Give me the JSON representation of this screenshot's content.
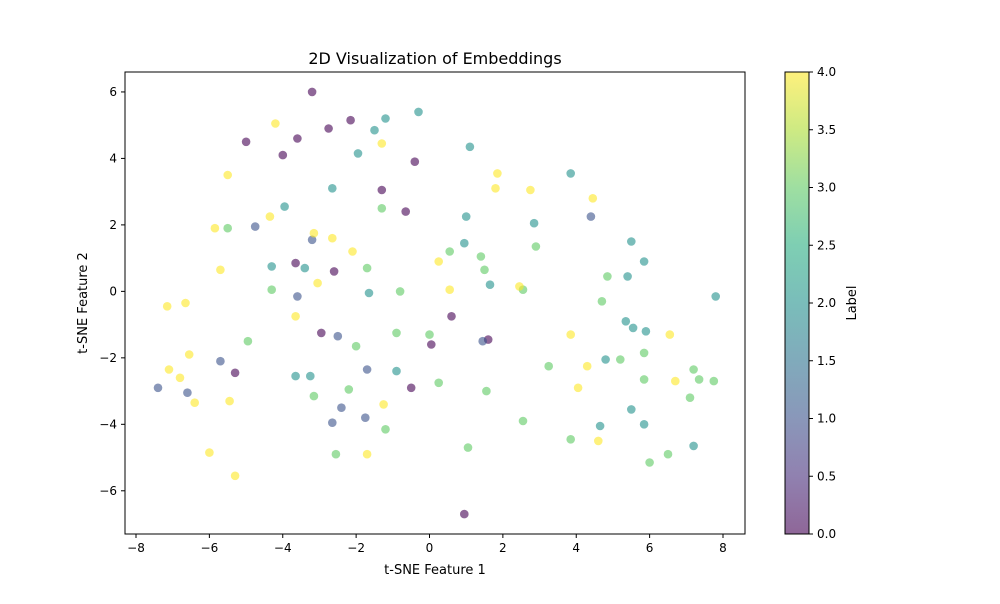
{
  "chart_data": {
    "type": "scatter",
    "title": "2D Visualization of Embeddings",
    "xlabel": "t-SNE Feature 1",
    "ylabel": "t-SNE Feature 2",
    "xlim": [
      -8.3,
      8.6
    ],
    "ylim": [
      -7.3,
      6.6
    ],
    "xticks": [
      -8,
      -6,
      -4,
      -2,
      0,
      2,
      4,
      6,
      8
    ],
    "yticks": [
      -6,
      -4,
      -2,
      0,
      2,
      4,
      6
    ],
    "xtick_labels": [
      "−8",
      "−6",
      "−4",
      "−2",
      "0",
      "2",
      "4",
      "6",
      "8"
    ],
    "ytick_labels": [
      "−6",
      "−4",
      "−2",
      "0",
      "2",
      "4",
      "6"
    ],
    "grid": false,
    "marker_alpha": 0.6,
    "colormap": "viridis",
    "colors": {
      "0": "#440154",
      "1": "#3b528b",
      "2": "#21918c",
      "3": "#5ec962",
      "4": "#fde725"
    },
    "colorbar": {
      "label": "Label",
      "range": [
        0.0,
        4.0
      ],
      "ticks": [
        0.0,
        0.5,
        1.0,
        1.5,
        2.0,
        2.5,
        3.0,
        3.5,
        4.0
      ],
      "tick_labels": [
        "0.0",
        "0.5",
        "1.0",
        "1.5",
        "2.0",
        "2.5",
        "3.0",
        "3.5",
        "4.0"
      ]
    },
    "points": [
      {
        "x": -3.2,
        "y": 6.0,
        "label": 0
      },
      {
        "x": -5.0,
        "y": 4.5,
        "label": 0
      },
      {
        "x": -4.0,
        "y": 4.1,
        "label": 0
      },
      {
        "x": -3.6,
        "y": 4.6,
        "label": 0
      },
      {
        "x": -2.75,
        "y": 4.9,
        "label": 0
      },
      {
        "x": -2.15,
        "y": 5.15,
        "label": 0
      },
      {
        "x": -0.4,
        "y": 3.9,
        "label": 0
      },
      {
        "x": -1.3,
        "y": 3.05,
        "label": 0
      },
      {
        "x": -0.65,
        "y": 2.4,
        "label": 0
      },
      {
        "x": -3.65,
        "y": 0.85,
        "label": 0
      },
      {
        "x": -2.6,
        "y": 0.6,
        "label": 0
      },
      {
        "x": -2.95,
        "y": -1.25,
        "label": 0
      },
      {
        "x": 0.6,
        "y": -0.75,
        "label": 0
      },
      {
        "x": 0.05,
        "y": -1.6,
        "label": 0
      },
      {
        "x": 1.6,
        "y": -1.45,
        "label": 0
      },
      {
        "x": -5.3,
        "y": -2.45,
        "label": 0
      },
      {
        "x": -0.5,
        "y": -2.9,
        "label": 0
      },
      {
        "x": 0.95,
        "y": -6.7,
        "label": 0
      },
      {
        "x": -4.75,
        "y": 1.95,
        "label": 1
      },
      {
        "x": -3.2,
        "y": 1.55,
        "label": 1
      },
      {
        "x": -3.6,
        "y": -0.15,
        "label": 1
      },
      {
        "x": -2.5,
        "y": -1.35,
        "label": 1
      },
      {
        "x": -5.7,
        "y": -2.1,
        "label": 1
      },
      {
        "x": -7.4,
        "y": -2.9,
        "label": 1
      },
      {
        "x": -6.6,
        "y": -3.05,
        "label": 1
      },
      {
        "x": -1.7,
        "y": -2.35,
        "label": 1
      },
      {
        "x": -2.4,
        "y": -3.5,
        "label": 1
      },
      {
        "x": -1.75,
        "y": -3.8,
        "label": 1
      },
      {
        "x": -2.65,
        "y": -3.95,
        "label": 1
      },
      {
        "x": 1.45,
        "y": -1.5,
        "label": 1
      },
      {
        "x": 4.4,
        "y": 2.25,
        "label": 1
      },
      {
        "x": -1.2,
        "y": 5.2,
        "label": 2
      },
      {
        "x": -1.5,
        "y": 4.85,
        "label": 2
      },
      {
        "x": -0.3,
        "y": 5.4,
        "label": 2
      },
      {
        "x": -1.95,
        "y": 4.15,
        "label": 2
      },
      {
        "x": 1.1,
        "y": 4.35,
        "label": 2
      },
      {
        "x": -2.65,
        "y": 3.1,
        "label": 2
      },
      {
        "x": -3.95,
        "y": 2.55,
        "label": 2
      },
      {
        "x": -4.3,
        "y": 0.75,
        "label": 2
      },
      {
        "x": -3.4,
        "y": 0.7,
        "label": 2
      },
      {
        "x": -1.65,
        "y": -0.05,
        "label": 2
      },
      {
        "x": 1.0,
        "y": 2.25,
        "label": 2
      },
      {
        "x": 0.95,
        "y": 1.45,
        "label": 2
      },
      {
        "x": 1.65,
        "y": 0.2,
        "label": 2
      },
      {
        "x": 2.85,
        "y": 2.05,
        "label": 2
      },
      {
        "x": 3.85,
        "y": 3.55,
        "label": 2
      },
      {
        "x": 5.5,
        "y": 1.5,
        "label": 2
      },
      {
        "x": 5.85,
        "y": 0.9,
        "label": 2
      },
      {
        "x": 5.4,
        "y": 0.45,
        "label": 2
      },
      {
        "x": 7.8,
        "y": -0.15,
        "label": 2
      },
      {
        "x": 5.35,
        "y": -0.9,
        "label": 2
      },
      {
        "x": 5.55,
        "y": -1.1,
        "label": 2
      },
      {
        "x": 5.9,
        "y": -1.2,
        "label": 2
      },
      {
        "x": 4.8,
        "y": -2.05,
        "label": 2
      },
      {
        "x": -3.65,
        "y": -2.55,
        "label": 2
      },
      {
        "x": -3.25,
        "y": -2.55,
        "label": 2
      },
      {
        "x": -0.9,
        "y": -2.4,
        "label": 2
      },
      {
        "x": 5.5,
        "y": -3.55,
        "label": 2
      },
      {
        "x": 5.85,
        "y": -4.0,
        "label": 2
      },
      {
        "x": 4.65,
        "y": -4.05,
        "label": 2
      },
      {
        "x": 7.2,
        "y": -4.65,
        "label": 2
      },
      {
        "x": -5.5,
        "y": 1.9,
        "label": 3
      },
      {
        "x": -1.3,
        "y": 2.5,
        "label": 3
      },
      {
        "x": 0.55,
        "y": 1.2,
        "label": 3
      },
      {
        "x": 1.4,
        "y": 1.05,
        "label": 3
      },
      {
        "x": 2.9,
        "y": 1.35,
        "label": 3
      },
      {
        "x": 1.5,
        "y": 0.65,
        "label": 3
      },
      {
        "x": -1.7,
        "y": 0.7,
        "label": 3
      },
      {
        "x": -0.8,
        "y": 0.0,
        "label": 3
      },
      {
        "x": -4.3,
        "y": 0.05,
        "label": 3
      },
      {
        "x": 2.55,
        "y": 0.05,
        "label": 3
      },
      {
        "x": 4.85,
        "y": 0.45,
        "label": 3
      },
      {
        "x": 4.7,
        "y": -0.3,
        "label": 3
      },
      {
        "x": -0.9,
        "y": -1.25,
        "label": 3
      },
      {
        "x": 0.0,
        "y": -1.3,
        "label": 3
      },
      {
        "x": -4.95,
        "y": -1.5,
        "label": 3
      },
      {
        "x": -2.0,
        "y": -1.65,
        "label": 3
      },
      {
        "x": 5.85,
        "y": -1.85,
        "label": 3
      },
      {
        "x": 5.2,
        "y": -2.05,
        "label": 3
      },
      {
        "x": 3.25,
        "y": -2.25,
        "label": 3
      },
      {
        "x": 7.2,
        "y": -2.35,
        "label": 3
      },
      {
        "x": 7.35,
        "y": -2.65,
        "label": 3
      },
      {
        "x": 7.75,
        "y": -2.7,
        "label": 3
      },
      {
        "x": 5.85,
        "y": -2.65,
        "label": 3
      },
      {
        "x": 0.25,
        "y": -2.75,
        "label": 3
      },
      {
        "x": -2.2,
        "y": -2.95,
        "label": 3
      },
      {
        "x": 1.55,
        "y": -3.0,
        "label": 3
      },
      {
        "x": -3.15,
        "y": -3.15,
        "label": 3
      },
      {
        "x": 7.1,
        "y": -3.2,
        "label": 3
      },
      {
        "x": 2.55,
        "y": -3.9,
        "label": 3
      },
      {
        "x": -1.2,
        "y": -4.15,
        "label": 3
      },
      {
        "x": 3.85,
        "y": -4.45,
        "label": 3
      },
      {
        "x": 1.05,
        "y": -4.7,
        "label": 3
      },
      {
        "x": -2.55,
        "y": -4.9,
        "label": 3
      },
      {
        "x": 6.5,
        "y": -4.9,
        "label": 3
      },
      {
        "x": 6.0,
        "y": -5.15,
        "label": 3
      },
      {
        "x": -4.2,
        "y": 5.05,
        "label": 4
      },
      {
        "x": -1.3,
        "y": 4.45,
        "label": 4
      },
      {
        "x": -5.5,
        "y": 3.5,
        "label": 4
      },
      {
        "x": 1.85,
        "y": 3.55,
        "label": 4
      },
      {
        "x": 1.8,
        "y": 3.1,
        "label": 4
      },
      {
        "x": 2.75,
        "y": 3.05,
        "label": 4
      },
      {
        "x": 4.45,
        "y": 2.8,
        "label": 4
      },
      {
        "x": -4.35,
        "y": 2.25,
        "label": 4
      },
      {
        "x": -5.85,
        "y": 1.9,
        "label": 4
      },
      {
        "x": -3.15,
        "y": 1.75,
        "label": 4
      },
      {
        "x": -2.65,
        "y": 1.6,
        "label": 4
      },
      {
        "x": -2.1,
        "y": 1.2,
        "label": 4
      },
      {
        "x": 0.25,
        "y": 0.9,
        "label": 4
      },
      {
        "x": -5.7,
        "y": 0.65,
        "label": 4
      },
      {
        "x": -3.05,
        "y": 0.25,
        "label": 4
      },
      {
        "x": 0.55,
        "y": 0.05,
        "label": 4
      },
      {
        "x": 2.45,
        "y": 0.15,
        "label": 4
      },
      {
        "x": -6.65,
        "y": -0.35,
        "label": 4
      },
      {
        "x": -7.15,
        "y": -0.45,
        "label": 4
      },
      {
        "x": -3.65,
        "y": -0.75,
        "label": 4
      },
      {
        "x": 3.85,
        "y": -1.3,
        "label": 4
      },
      {
        "x": 6.55,
        "y": -1.3,
        "label": 4
      },
      {
        "x": -6.55,
        "y": -1.9,
        "label": 4
      },
      {
        "x": -7.1,
        "y": -2.35,
        "label": 4
      },
      {
        "x": -6.8,
        "y": -2.6,
        "label": 4
      },
      {
        "x": 4.3,
        "y": -2.25,
        "label": 4
      },
      {
        "x": 6.7,
        "y": -2.7,
        "label": 4
      },
      {
        "x": 4.05,
        "y": -2.9,
        "label": 4
      },
      {
        "x": -6.4,
        "y": -3.35,
        "label": 4
      },
      {
        "x": -5.45,
        "y": -3.3,
        "label": 4
      },
      {
        "x": -1.25,
        "y": -3.4,
        "label": 4
      },
      {
        "x": 4.6,
        "y": -4.5,
        "label": 4
      },
      {
        "x": -6.0,
        "y": -4.85,
        "label": 4
      },
      {
        "x": -1.7,
        "y": -4.9,
        "label": 4
      },
      {
        "x": -5.3,
        "y": -5.55,
        "label": 4
      }
    ]
  }
}
